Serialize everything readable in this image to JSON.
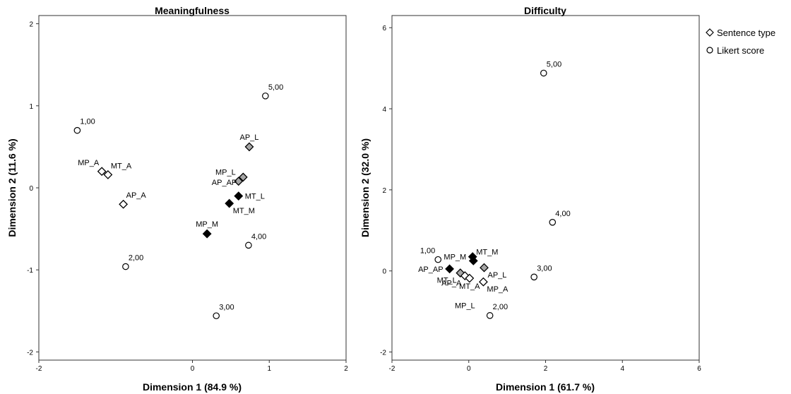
{
  "legend": {
    "items": [
      {
        "label": "Sentence type",
        "icon": "diamond-icon"
      },
      {
        "label": "Likert score",
        "icon": "circle-icon"
      }
    ]
  },
  "colors": {
    "open": "#ffffff",
    "black": "#000000",
    "gray": "#a6a6a6",
    "stroke": "#000000"
  },
  "chart_data": [
    {
      "type": "scatter",
      "title": "Meaningfulness",
      "xlabel": "Dimension 1 (84.9 %)",
      "ylabel": "Dimension 2 (11.6 %)",
      "xlim": [
        -2,
        2
      ],
      "ylim": [
        -2.1,
        2.1
      ],
      "xticks": [
        {
          "v": -2,
          "label": "-2"
        },
        {
          "v": 0,
          "label": "0"
        },
        {
          "v": 1,
          "label": "1"
        },
        {
          "v": 2,
          "label": "2"
        }
      ],
      "yticks": [
        {
          "v": -2,
          "label": "-2"
        },
        {
          "v": -1,
          "label": "-1"
        },
        {
          "v": 0,
          "label": "0"
        },
        {
          "v": 1,
          "label": "1"
        },
        {
          "v": 2,
          "label": "2"
        }
      ],
      "grid": false,
      "series": [
        {
          "name": "Sentence type",
          "marker": "diamond",
          "points": [
            {
              "label": "MP_A",
              "x": -1.18,
              "y": 0.2,
              "fill": "open",
              "label_pos": "above-left"
            },
            {
              "label": "MT_A",
              "x": -1.1,
              "y": 0.16,
              "fill": "open",
              "label_pos": "above-right"
            },
            {
              "label": "AP_A",
              "x": -0.9,
              "y": -0.2,
              "fill": "open",
              "label_pos": "above-right"
            },
            {
              "label": "AP_L",
              "x": 0.74,
              "y": 0.5,
              "fill": "gray",
              "label_pos": "above"
            },
            {
              "label": "MP_L",
              "x": 0.6,
              "y": 0.08,
              "fill": "gray",
              "label_pos": "above-left"
            },
            {
              "label": "AP_AP",
              "x": 0.66,
              "y": 0.13,
              "fill": "gray",
              "label_pos": "left-below"
            },
            {
              "label": "MT_L",
              "x": 0.6,
              "y": -0.1,
              "fill": "black",
              "label_pos": "right"
            },
            {
              "label": "MT_M",
              "x": 0.48,
              "y": -0.19,
              "fill": "black",
              "label_pos": "below-right"
            },
            {
              "label": "MP_M",
              "x": 0.19,
              "y": -0.56,
              "fill": "black",
              "label_pos": "above"
            }
          ]
        },
        {
          "name": "Likert score",
          "marker": "circle",
          "points": [
            {
              "label": "1,00",
              "x": -1.5,
              "y": 0.7,
              "label_pos": "above-right"
            },
            {
              "label": "2,00",
              "x": -0.87,
              "y": -0.96,
              "label_pos": "above-right"
            },
            {
              "label": "3,00",
              "x": 0.31,
              "y": -1.56,
              "label_pos": "above-right"
            },
            {
              "label": "4,00",
              "x": 0.73,
              "y": -0.7,
              "label_pos": "above-right"
            },
            {
              "label": "5,00",
              "x": 0.95,
              "y": 1.12,
              "label_pos": "above-right"
            }
          ]
        }
      ]
    },
    {
      "type": "scatter",
      "title": "Difficulty",
      "xlabel": "Dimension 1 (61.7 %)",
      "ylabel": "Dimension 2 (32.0 %)",
      "xlim": [
        -2,
        6
      ],
      "ylim": [
        -2.2,
        6.3
      ],
      "xticks": [
        {
          "v": -2,
          "label": "-2"
        },
        {
          "v": 0,
          "label": "0"
        },
        {
          "v": 2,
          "label": "2"
        },
        {
          "v": 4,
          "label": "4"
        },
        {
          "v": 6,
          "label": "6"
        }
      ],
      "yticks": [
        {
          "v": -2,
          "label": "-2"
        },
        {
          "v": 0,
          "label": "0"
        },
        {
          "v": 2,
          "label": "2"
        },
        {
          "v": 4,
          "label": "4"
        },
        {
          "v": 6,
          "label": "6"
        }
      ],
      "grid": false,
      "series": [
        {
          "name": "Sentence type",
          "marker": "diamond",
          "points": [
            {
              "label": "AP_AP",
              "x": -0.5,
              "y": 0.05,
              "fill": "black",
              "label_pos": "left"
            },
            {
              "label": "MP_M",
              "x": 0.1,
              "y": 0.35,
              "fill": "black",
              "label_pos": "left"
            },
            {
              "label": "MT_M",
              "x": 0.12,
              "y": 0.25,
              "fill": "black",
              "label_pos": "above-right"
            },
            {
              "label": "MT_L",
              "x": -0.22,
              "y": -0.05,
              "fill": "gray",
              "label_pos": "below-left"
            },
            {
              "label": "AP_L",
              "x": 0.4,
              "y": 0.08,
              "fill": "gray",
              "label_pos": "below-right"
            },
            {
              "label": "AP_A",
              "x": -0.1,
              "y": -0.12,
              "fill": "open",
              "label_pos": "below-left"
            },
            {
              "label": "MT_A",
              "x": 0.02,
              "y": -0.18,
              "fill": "open",
              "label_pos": "below"
            },
            {
              "label": "MP_A",
              "x": 0.38,
              "y": -0.27,
              "fill": "open",
              "label_pos": "below-right"
            }
          ]
        },
        {
          "name": "Likert score",
          "marker": "circle",
          "points": [
            {
              "label": "1,00",
              "x": -0.8,
              "y": 0.28,
              "label_pos": "above-left"
            },
            {
              "label": "2,00",
              "x": 0.55,
              "y": -1.1,
              "label_pos": "above-right"
            },
            {
              "label": "3,00",
              "x": 1.7,
              "y": -0.15,
              "label_pos": "above-right"
            },
            {
              "label": "4,00",
              "x": 2.18,
              "y": 1.2,
              "label_pos": "above-right"
            },
            {
              "label": "5,00",
              "x": 1.95,
              "y": 4.88,
              "label_pos": "above-right"
            }
          ]
        }
      ],
      "extra_labels": [
        {
          "label": "MP_L",
          "x": -0.1,
          "y": -0.92
        }
      ]
    }
  ]
}
